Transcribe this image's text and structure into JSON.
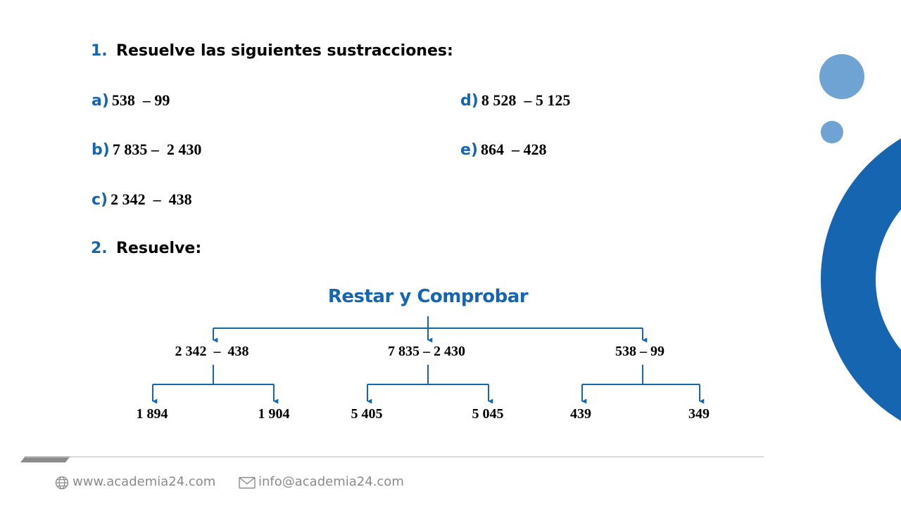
{
  "colors": {
    "accent": "#1565b0",
    "light_accent": "#6fa3d4",
    "footer_gray": "#8a8a8a"
  },
  "section1": {
    "number": "1.",
    "title": "Resuelve las siguientes sustracciones:",
    "items": [
      {
        "label": "a)",
        "expr": "538  – 99"
      },
      {
        "label": "b)",
        "expr": "7 835 –  2 430"
      },
      {
        "label": "c)",
        "expr": "2 342  –  438"
      },
      {
        "label": "d)",
        "expr": "8 528  – 5 125"
      },
      {
        "label": "e)",
        "expr": "864  – 428"
      }
    ]
  },
  "section2": {
    "number": "2.",
    "title": "Resuelve:"
  },
  "diagram": {
    "title": "Restar y Comprobar",
    "branches": [
      {
        "expr": "2 342  –  438",
        "options": [
          "1 894",
          "1 904"
        ]
      },
      {
        "expr": "7 835 – 2 430",
        "options": [
          "5 405",
          "5 045"
        ]
      },
      {
        "expr": "538 – 99",
        "options": [
          "439",
          "349"
        ]
      }
    ]
  },
  "footer": {
    "website": "www.academia24.com",
    "email": "info@academia24.com",
    "website_icon": "globe-icon",
    "email_icon": "envelope-icon"
  }
}
